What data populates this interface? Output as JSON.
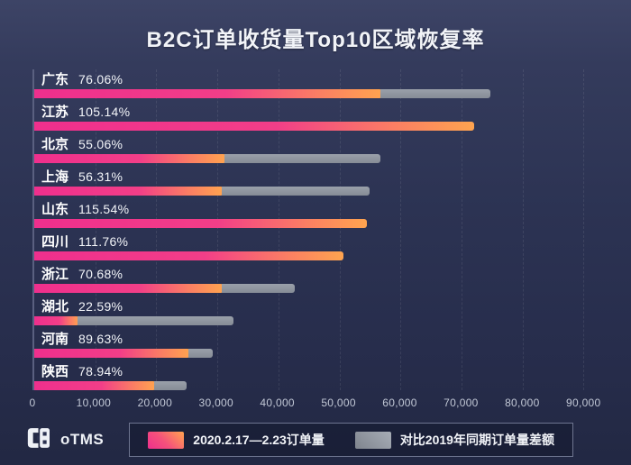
{
  "title": "B2C订单收货量Top10区域恢复率",
  "chart_data": {
    "type": "bar",
    "orientation": "horizontal",
    "title": "B2C订单收货量Top10区域恢复率",
    "xlim": [
      0,
      96000
    ],
    "x_tick_step": 10000,
    "x_ticks": [
      "0",
      "10,000",
      "20,000",
      "30,000",
      "40,000",
      "50,000",
      "60,000",
      "70,000",
      "80,000",
      "90,000"
    ],
    "grid": true,
    "legend_position": "bottom",
    "categories": [
      "广东",
      "江苏",
      "北京",
      "上海",
      "山东",
      "四川",
      "浙江",
      "湖北",
      "河南",
      "陕西"
    ],
    "recovery_rates": [
      "76.06%",
      "105.14%",
      "55.06%",
      "56.31%",
      "115.54%",
      "111.76%",
      "70.68%",
      "22.59%",
      "89.63%",
      "78.94%"
    ],
    "series": [
      {
        "name": "2020.2.17—2.23订单量",
        "color_start": "#ef2f8d",
        "color_end": "#ffa44f",
        "values": [
          57000,
          72000,
          31500,
          31000,
          54500,
          50700,
          31000,
          7400,
          25500,
          20000
        ]
      },
      {
        "name": "对比2019年同期订单量差额",
        "color": "#8b9099",
        "values": [
          18000,
          0,
          25500,
          24200,
          0,
          0,
          12000,
          25600,
          4000,
          5200
        ]
      }
    ]
  },
  "legend": {
    "items": [
      {
        "label": "2020.2.17—2.23订单量",
        "swatch_color": "pink-orange-gradient"
      },
      {
        "label": "对比2019年同期订单量差额",
        "swatch_color": "gray"
      }
    ]
  },
  "footer": {
    "logo_text": "oTMS"
  },
  "colors": {
    "background": "#2c3353",
    "bar_pink": "#ef2f8d",
    "bar_orange": "#ffa44f",
    "bar_gray": "#8b9099",
    "axis_text": "#c2c8d6"
  }
}
